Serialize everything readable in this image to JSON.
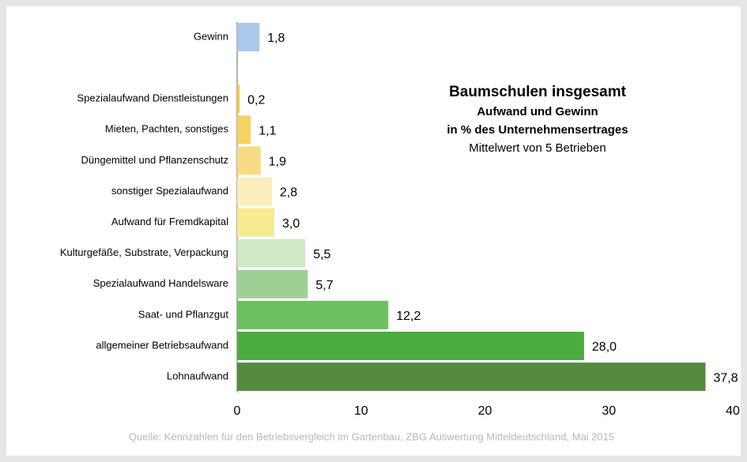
{
  "chart_data": {
    "type": "bar",
    "orientation": "horizontal",
    "title": "Baumschulen insgesamt",
    "subtitle": [
      "Aufwand und Gewinn",
      "in % des Unternehmensertrages",
      "Mittelwert von 5 Betrieben"
    ],
    "source": "Quelle: Kennzahlen für den Betriebsvergleich im Gartenbau, ZBG Auswertung Mitteldeutschland, Mai 2015",
    "categories": [
      "Gewinn",
      null,
      "Spezialaufwand Dienstleistungen",
      "Mieten, Pachten, sonstiges",
      "Düngemittel und Pflanzenschutz",
      "sonstiger Spezialaufwand",
      "Aufwand für Fremdkapital",
      "Kulturgefäße, Substrate, Verpackung",
      "Spezialaufwand Handelsware",
      "Saat- und Pflanzgut",
      "allgemeiner Betriebsaufwand",
      "Lohnaufwand"
    ],
    "values": [
      1.8,
      null,
      0.2,
      1.1,
      1.9,
      2.8,
      3.0,
      5.5,
      5.7,
      12.2,
      28.0,
      37.8
    ],
    "value_labels": [
      "1,8",
      null,
      "0,2",
      "1,1",
      "1,9",
      "2,8",
      "3,0",
      "5,5",
      "5,7",
      "12,2",
      "28,0",
      "37,8"
    ],
    "colors": [
      "#a9c8ea",
      null,
      "#f2c744",
      "#f5d263",
      "#f7dc85",
      "#faeebd",
      "#f6ea92",
      "#d0e8c6",
      "#9ed093",
      "#6ebf5f",
      "#4bac3f",
      "#548b3f"
    ],
    "xlim": [
      0,
      40
    ],
    "xticks": [
      0,
      10,
      20,
      30,
      40
    ],
    "grid": false
  }
}
